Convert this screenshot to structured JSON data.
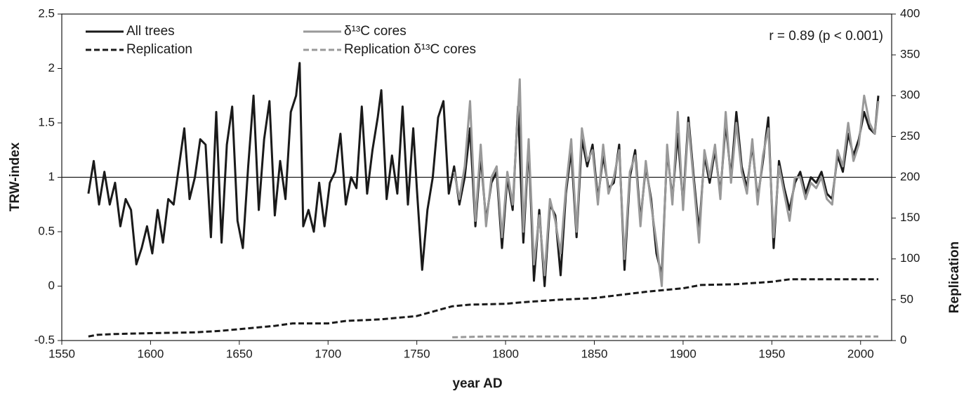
{
  "chart_data": {
    "type": "line",
    "y_label": "TRW-index",
    "y2_label": "Replication",
    "x_label": "year AD",
    "annotation": "r = 0.89 (p < 0.001)",
    "xlim": [
      1550,
      2017.5
    ],
    "xticks": [
      1550,
      1600,
      1650,
      1700,
      1750,
      1800,
      1850,
      1900,
      1950,
      2000
    ],
    "ylim": [
      -0.5,
      2.5
    ],
    "yticks": [
      -0.5,
      0,
      0.5,
      1,
      1.5,
      2,
      2.5
    ],
    "y2lim": [
      0,
      400
    ],
    "y2ticks": [
      0,
      50,
      100,
      150,
      200,
      250,
      300,
      350,
      400
    ],
    "hline": 1,
    "legend": "upper left",
    "series": [
      {
        "name": "All trees",
        "color": "#1a1a1a",
        "dash": false,
        "x": [
          1565,
          1568,
          1571,
          1574,
          1577,
          1580,
          1583,
          1586,
          1589,
          1592,
          1595,
          1598,
          1601,
          1604,
          1607,
          1610,
          1613,
          1616,
          1619,
          1622,
          1625,
          1628,
          1631,
          1634,
          1637,
          1640,
          1643,
          1646,
          1649,
          1652,
          1655,
          1658,
          1661,
          1664,
          1667,
          1670,
          1673,
          1676,
          1679,
          1682,
          1684,
          1686,
          1689,
          1692,
          1695,
          1698,
          1701,
          1704,
          1707,
          1710,
          1713,
          1716,
          1719,
          1722,
          1725,
          1728,
          1730,
          1733,
          1736,
          1739,
          1742,
          1745,
          1748,
          1750,
          1753,
          1756,
          1759,
          1762,
          1765,
          1768,
          1771,
          1774,
          1777,
          1780,
          1783,
          1786,
          1789,
          1792,
          1795,
          1798,
          1801,
          1804,
          1807,
          1810,
          1813,
          1816,
          1819,
          1822,
          1825,
          1828,
          1831,
          1834,
          1837,
          1840,
          1843,
          1846,
          1849,
          1852,
          1855,
          1858,
          1861,
          1864,
          1867,
          1870,
          1873,
          1876,
          1879,
          1882,
          1885,
          1888,
          1891,
          1894,
          1897,
          1900,
          1903,
          1906,
          1909,
          1912,
          1915,
          1918,
          1921,
          1924,
          1927,
          1930,
          1933,
          1936,
          1939,
          1942,
          1945,
          1948,
          1951,
          1954,
          1957,
          1960,
          1963,
          1966,
          1969,
          1972,
          1975,
          1978,
          1981,
          1984,
          1987,
          1990,
          1993,
          1996,
          1999,
          2002,
          2005,
          2008,
          2010
        ],
        "values": [
          0.85,
          1.15,
          0.75,
          1.05,
          0.75,
          0.95,
          0.55,
          0.8,
          0.7,
          0.2,
          0.35,
          0.55,
          0.3,
          0.7,
          0.4,
          0.8,
          0.75,
          1.1,
          1.45,
          0.8,
          1.0,
          1.35,
          1.3,
          0.45,
          1.6,
          0.4,
          1.3,
          1.65,
          0.6,
          0.35,
          1.1,
          1.75,
          0.7,
          1.35,
          1.7,
          0.65,
          1.15,
          0.8,
          1.6,
          1.75,
          2.05,
          0.55,
          0.7,
          0.5,
          0.95,
          0.55,
          0.95,
          1.05,
          1.4,
          0.75,
          1.0,
          0.9,
          1.65,
          0.85,
          1.25,
          1.55,
          1.8,
          0.8,
          1.2,
          0.85,
          1.65,
          0.75,
          1.45,
          0.9,
          0.15,
          0.7,
          1.0,
          1.55,
          1.7,
          0.85,
          1.1,
          0.75,
          1.0,
          1.45,
          0.55,
          1.2,
          0.6,
          0.95,
          1.05,
          0.35,
          1.0,
          0.7,
          1.65,
          0.4,
          1.3,
          0.05,
          0.7,
          0.0,
          0.75,
          0.65,
          0.1,
          0.85,
          1.25,
          0.45,
          1.35,
          1.1,
          1.3,
          0.8,
          1.2,
          0.9,
          0.95,
          1.3,
          0.15,
          1.0,
          1.25,
          0.6,
          1.1,
          0.8,
          0.3,
          0.1,
          1.25,
          0.8,
          1.4,
          0.75,
          1.55,
          1.0,
          0.5,
          1.2,
          0.95,
          1.25,
          0.85,
          1.5,
          1.0,
          1.6,
          1.1,
          0.9,
          1.3,
          0.8,
          1.15,
          1.55,
          0.35,
          1.15,
          0.9,
          0.7,
          0.95,
          1.05,
          0.85,
          1.0,
          0.95,
          1.05,
          0.85,
          0.8,
          1.2,
          1.05,
          1.4,
          1.2,
          1.35,
          1.6,
          1.45,
          1.4,
          1.75
        ]
      },
      {
        "name": "δ¹³C cores",
        "color": "#999999",
        "dash": false,
        "x": [
          1771,
          1774,
          1777,
          1780,
          1783,
          1786,
          1789,
          1792,
          1795,
          1798,
          1801,
          1804,
          1808,
          1810,
          1813,
          1816,
          1819,
          1822,
          1825,
          1828,
          1831,
          1834,
          1837,
          1840,
          1843,
          1846,
          1849,
          1852,
          1855,
          1858,
          1861,
          1864,
          1867,
          1870,
          1873,
          1876,
          1879,
          1882,
          1885,
          1888,
          1891,
          1894,
          1897,
          1900,
          1903,
          1906,
          1909,
          1912,
          1915,
          1918,
          1921,
          1924,
          1927,
          1930,
          1933,
          1936,
          1939,
          1942,
          1945,
          1948,
          1951,
          1954,
          1957,
          1960,
          1963,
          1966,
          1969,
          1972,
          1975,
          1978,
          1981,
          1984,
          1987,
          1990,
          1993,
          1996,
          1999,
          2002,
          2005,
          2008,
          2010
        ],
        "values": [
          1.05,
          0.8,
          1.1,
          1.7,
          0.6,
          1.3,
          0.55,
          1.0,
          1.1,
          0.45,
          1.05,
          0.75,
          1.9,
          0.5,
          1.35,
          0.2,
          0.65,
          0.1,
          0.8,
          0.6,
          0.3,
          0.9,
          1.35,
          0.5,
          1.45,
          1.15,
          1.25,
          0.75,
          1.3,
          0.85,
          1.0,
          1.25,
          0.25,
          1.05,
          1.2,
          0.55,
          1.15,
          0.75,
          0.4,
          0.0,
          1.3,
          0.75,
          1.6,
          0.7,
          1.5,
          0.95,
          0.4,
          1.25,
          1.0,
          1.3,
          0.8,
          1.6,
          0.95,
          1.5,
          1.05,
          0.85,
          1.35,
          0.75,
          1.2,
          1.45,
          0.45,
          1.1,
          0.85,
          0.6,
          1.0,
          1.0,
          0.8,
          0.95,
          0.9,
          1.0,
          0.8,
          0.75,
          1.25,
          1.1,
          1.5,
          1.15,
          1.3,
          1.75,
          1.5,
          1.4,
          1.7
        ]
      },
      {
        "name": "Replication",
        "color": "#1a1a1a",
        "dash": true,
        "axis": "y2",
        "x": [
          1565,
          1570,
          1580,
          1600,
          1625,
          1640,
          1655,
          1670,
          1680,
          1700,
          1710,
          1730,
          1750,
          1760,
          1770,
          1780,
          1800,
          1810,
          1830,
          1850,
          1865,
          1880,
          1900,
          1910,
          1930,
          1950,
          1960,
          2010
        ],
        "values": [
          5,
          7,
          8,
          9,
          10,
          12,
          15,
          18,
          21,
          21,
          24,
          26,
          30,
          36,
          42,
          44,
          45,
          47,
          50,
          52,
          56,
          60,
          64,
          68,
          69,
          72,
          75,
          75
        ]
      },
      {
        "name": "Replication δ¹³C cores",
        "color": "#999999",
        "dash": true,
        "axis": "y2",
        "x": [
          1770,
          1790,
          2010
        ],
        "values": [
          4,
          5,
          5
        ]
      }
    ]
  }
}
